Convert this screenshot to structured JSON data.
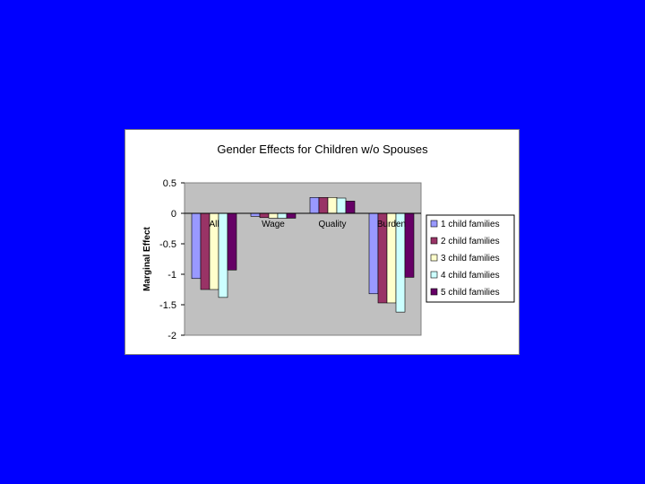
{
  "chart_data": {
    "type": "bar",
    "title": "Gender Effects for Children w/o Spouses",
    "ylabel": "Marginal Effect",
    "xlabel": "",
    "categories": [
      "All",
      "Wage",
      "Quality",
      "Burden"
    ],
    "ylim": [
      -2,
      0.5
    ],
    "yticks": [
      "0.5",
      "0",
      "-0.5",
      "-1",
      "-1.5",
      "-2"
    ],
    "ytick_values": [
      0.5,
      0,
      -0.5,
      -1,
      -1.5,
      -2
    ],
    "grid": false,
    "legend_position": "right",
    "series": [
      {
        "name": "1 child families",
        "color": "#9999ff",
        "values": [
          -1.07,
          -0.05,
          0.26,
          -1.32
        ]
      },
      {
        "name": "2 child families",
        "color": "#993366",
        "values": [
          -1.25,
          -0.07,
          0.26,
          -1.47
        ]
      },
      {
        "name": "3 child families",
        "color": "#ffffcc",
        "values": [
          -1.25,
          -0.08,
          0.26,
          -1.47
        ]
      },
      {
        "name": "4 child families",
        "color": "#ccffff",
        "values": [
          -1.38,
          -0.08,
          0.25,
          -1.62
        ]
      },
      {
        "name": "5 child families",
        "color": "#660066",
        "values": [
          -0.93,
          -0.08,
          0.2,
          -1.05
        ]
      }
    ],
    "plot_background": "#c0c0c0"
  },
  "colors": {
    "page_background": "#0000ff",
    "frame_background": "#ffffff"
  }
}
